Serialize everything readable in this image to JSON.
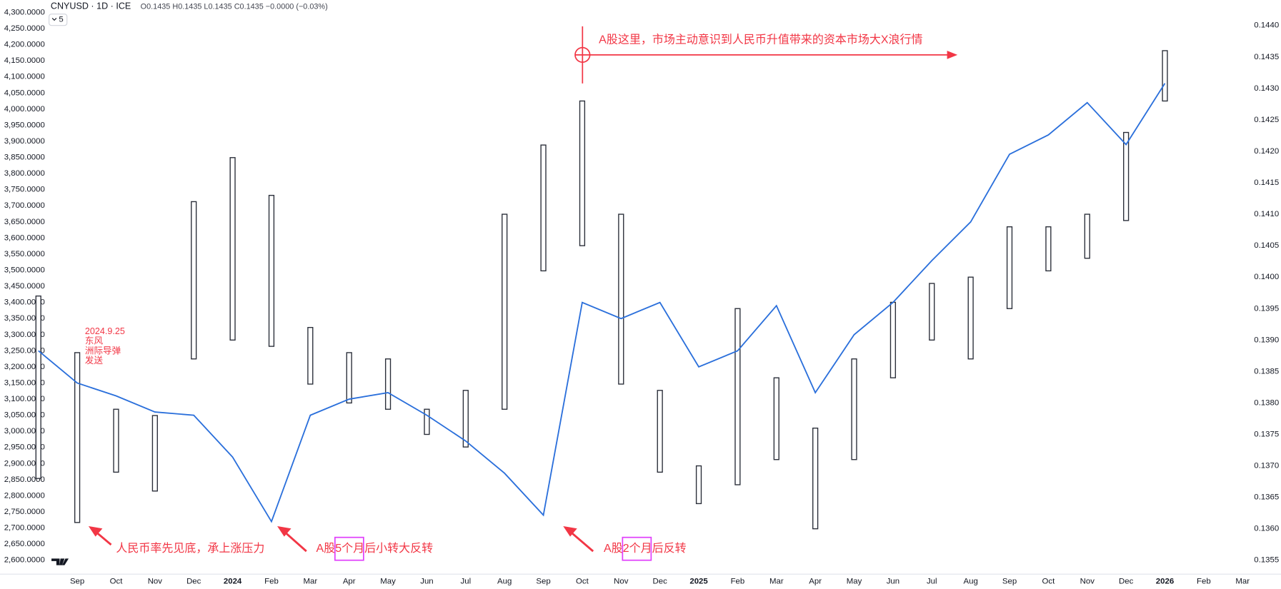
{
  "chart_data": {
    "type": "combo",
    "symbol": "CNYUSD · 1D · ICE",
    "quote": "O0.1435 H0.1435 L0.1435 C0.1435 −0.0000 (−0.03%)",
    "interval": "5",
    "x": [
      "2023-08",
      "2023-09",
      "2023-10",
      "2023-11",
      "2023-12",
      "2024-01",
      "2024-02",
      "2024-03",
      "2024-04",
      "2024-05",
      "2024-06",
      "2024-07",
      "2024-08",
      "2024-09",
      "2024-10",
      "2024-11",
      "2024-12",
      "2025-01",
      "2025-02",
      "2025-03",
      "2025-04",
      "2025-05",
      "2025-06",
      "2025-07",
      "2025-08",
      "2025-09",
      "2025-10",
      "2025-11",
      "2025-12",
      "2026-01"
    ],
    "xlim": [
      "2023-08",
      "2026-03"
    ],
    "xticks": [
      {
        "value": "2023-09",
        "label": "Sep"
      },
      {
        "value": "2023-10",
        "label": "Oct"
      },
      {
        "value": "2023-11",
        "label": "Nov"
      },
      {
        "value": "2023-12",
        "label": "Dec"
      },
      {
        "value": "2024-01",
        "label": "2024"
      },
      {
        "value": "2024-02",
        "label": "Feb"
      },
      {
        "value": "2024-03",
        "label": "Mar"
      },
      {
        "value": "2024-04",
        "label": "Apr"
      },
      {
        "value": "2024-05",
        "label": "May"
      },
      {
        "value": "2024-06",
        "label": "Jun"
      },
      {
        "value": "2024-07",
        "label": "Jul"
      },
      {
        "value": "2024-08",
        "label": "Aug"
      },
      {
        "value": "2024-09",
        "label": "Sep"
      },
      {
        "value": "2024-10",
        "label": "Oct"
      },
      {
        "value": "2024-11",
        "label": "Nov"
      },
      {
        "value": "2024-12",
        "label": "Dec"
      },
      {
        "value": "2025-01",
        "label": "2025"
      },
      {
        "value": "2025-02",
        "label": "Feb"
      },
      {
        "value": "2025-03",
        "label": "Mar"
      },
      {
        "value": "2025-04",
        "label": "Apr"
      },
      {
        "value": "2025-05",
        "label": "May"
      },
      {
        "value": "2025-06",
        "label": "Jun"
      },
      {
        "value": "2025-07",
        "label": "Jul"
      },
      {
        "value": "2025-08",
        "label": "Aug"
      },
      {
        "value": "2025-09",
        "label": "Sep"
      },
      {
        "value": "2025-10",
        "label": "Oct"
      },
      {
        "value": "2025-11",
        "label": "Nov"
      },
      {
        "value": "2025-12",
        "label": "Dec"
      },
      {
        "value": "2026-01",
        "label": "2026"
      },
      {
        "value": "2026-02",
        "label": "Feb"
      },
      {
        "value": "2026-03",
        "label": "Mar"
      }
    ],
    "line": {
      "color": "#2a6fdb",
      "values": [
        3250,
        3150,
        3110,
        3060,
        3050,
        2920,
        2720,
        3050,
        3100,
        3120,
        3050,
        2970,
        2870,
        2740,
        3400,
        3350,
        3400,
        3200,
        3250,
        3390,
        3120,
        3300,
        3400,
        3530,
        3650,
        3860,
        3920,
        4020,
        3890,
        4080
      ]
    },
    "bars": {
      "color": "#2a2e39",
      "axis": "y2",
      "high": [
        0.1397,
        0.1388,
        0.1379,
        0.1378,
        0.1412,
        0.1419,
        0.1413,
        0.1392,
        0.1388,
        0.1387,
        0.1379,
        0.1382,
        0.141,
        0.1421,
        0.1428,
        0.141,
        0.1382,
        0.137,
        0.1395,
        0.1384,
        0.1376,
        0.1387,
        0.1396,
        0.1399,
        0.14,
        0.1408,
        0.1408,
        0.141,
        0.1423,
        0.1436
      ],
      "low": [
        0.1368,
        0.1361,
        0.1369,
        0.1366,
        0.1387,
        0.139,
        0.1389,
        0.1383,
        0.138,
        0.1379,
        0.1375,
        0.1373,
        0.1379,
        0.1401,
        0.1405,
        0.1383,
        0.1369,
        0.1364,
        0.1367,
        0.1371,
        0.136,
        0.1371,
        0.1384,
        0.139,
        0.1387,
        0.1395,
        0.1401,
        0.1403,
        0.1409,
        0.1428
      ]
    },
    "ylim": [
      2600,
      4300
    ],
    "yticks": [
      {
        "value": 4300,
        "label": "4,300.0000"
      },
      {
        "value": 4250,
        "label": "4,250.0000"
      },
      {
        "value": 4200,
        "label": "4,200.0000"
      },
      {
        "value": 4150,
        "label": "4,150.0000"
      },
      {
        "value": 4100,
        "label": "4,100.0000"
      },
      {
        "value": 4050,
        "label": "4,050.0000"
      },
      {
        "value": 4000,
        "label": "4,000.0000"
      },
      {
        "value": 3950,
        "label": "3,950.0000"
      },
      {
        "value": 3900,
        "label": "3,900.0000"
      },
      {
        "value": 3850,
        "label": "3,850.0000"
      },
      {
        "value": 3800,
        "label": "3,800.0000"
      },
      {
        "value": 3750,
        "label": "3,750.0000"
      },
      {
        "value": 3700,
        "label": "3,700.0000"
      },
      {
        "value": 3650,
        "label": "3,650.0000"
      },
      {
        "value": 3600,
        "label": "3,600.0000"
      },
      {
        "value": 3550,
        "label": "3,550.0000"
      },
      {
        "value": 3500,
        "label": "3,500.0000"
      },
      {
        "value": 3450,
        "label": "3,450.0000"
      },
      {
        "value": 3400,
        "label": "3,400.0000"
      },
      {
        "value": 3350,
        "label": "3,350.0000"
      },
      {
        "value": 3300,
        "label": "3,300.0000"
      },
      {
        "value": 3250,
        "label": "3,250.0000"
      },
      {
        "value": 3200,
        "label": "3,200.0000"
      },
      {
        "value": 3150,
        "label": "3,150.0000"
      },
      {
        "value": 3100,
        "label": "3,100.0000"
      },
      {
        "value": 3050,
        "label": "3,050.0000"
      },
      {
        "value": 3000,
        "label": "3,000.0000"
      },
      {
        "value": 2950,
        "label": "2,950.0000"
      },
      {
        "value": 2900,
        "label": "2,900.0000"
      },
      {
        "value": 2850,
        "label": "2,850.0000"
      },
      {
        "value": 2800,
        "label": "2,800.0000"
      },
      {
        "value": 2750,
        "label": "2,750.0000"
      },
      {
        "value": 2700,
        "label": "2,700.0000"
      },
      {
        "value": 2650,
        "label": "2,650.0000"
      },
      {
        "value": 2600,
        "label": "2,600.0000"
      }
    ],
    "y2lim": [
      0.1355,
      0.144
    ],
    "y2ticks": [
      {
        "value": 0.144,
        "label": "0.1440"
      },
      {
        "value": 0.1435,
        "label": "0.1435"
      },
      {
        "value": 0.143,
        "label": "0.1430"
      },
      {
        "value": 0.1425,
        "label": "0.1425"
      },
      {
        "value": 0.142,
        "label": "0.1420"
      },
      {
        "value": 0.1415,
        "label": "0.1415"
      },
      {
        "value": 0.141,
        "label": "0.1410"
      },
      {
        "value": 0.1405,
        "label": "0.1405"
      },
      {
        "value": 0.14,
        "label": "0.1400"
      },
      {
        "value": 0.1395,
        "label": "0.1395"
      },
      {
        "value": 0.139,
        "label": "0.1390"
      },
      {
        "value": 0.1385,
        "label": "0.1385"
      },
      {
        "value": 0.138,
        "label": "0.1380"
      },
      {
        "value": 0.1375,
        "label": "0.1375"
      },
      {
        "value": 0.137,
        "label": "0.1370"
      },
      {
        "value": 0.1365,
        "label": "0.1365"
      },
      {
        "value": 0.136,
        "label": "0.1360"
      },
      {
        "value": 0.1355,
        "label": "0.1355"
      }
    ],
    "annotations": [
      "2024.9.25",
      "东风",
      "洲际导弹",
      "发送",
      "人民币率先见底，承上涨压力",
      "A股5个月后小转大反转",
      "A股2个月后反转",
      "A股这里，市场主动意识到人民币升值带来的资本市场大X浪行情"
    ]
  }
}
